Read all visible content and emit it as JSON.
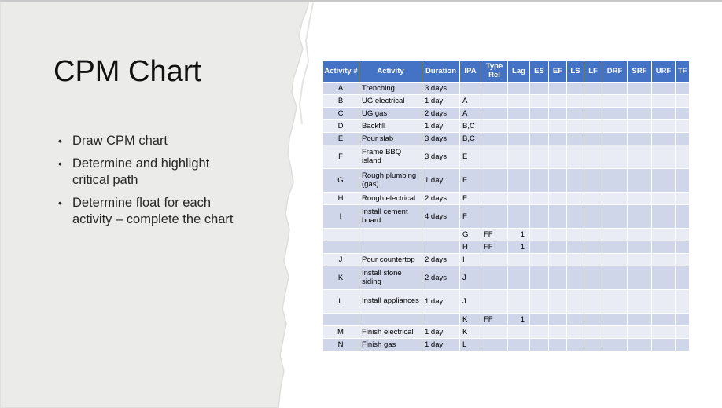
{
  "slide": {
    "title": "CPM Chart",
    "bullets": [
      "Draw CPM chart",
      "Determine and highlight critical path",
      "Determine float for each activity – complete the chart"
    ]
  },
  "table": {
    "columns": [
      "Activity #",
      "Activity",
      "Duration",
      "IPA",
      "Type\nRel",
      "Lag",
      "ES",
      "EF",
      "LS",
      "LF",
      "DRF",
      "SRF",
      "URF",
      "TF"
    ],
    "rows": [
      [
        "A",
        "Trenching",
        "3 days",
        "",
        "",
        "",
        "",
        "",
        "",
        "",
        "",
        "",
        "",
        ""
      ],
      [
        "B",
        "UG electrical",
        "1 day",
        "A",
        "",
        "",
        "",
        "",
        "",
        "",
        "",
        "",
        "",
        ""
      ],
      [
        "C",
        "UG gas",
        "2 days",
        "A",
        "",
        "",
        "",
        "",
        "",
        "",
        "",
        "",
        "",
        ""
      ],
      [
        "D",
        "Backfill",
        "1 day",
        "B,C",
        "",
        "",
        "",
        "",
        "",
        "",
        "",
        "",
        "",
        ""
      ],
      [
        "E",
        "Pour slab",
        "3 days",
        "B,C",
        "",
        "",
        "",
        "",
        "",
        "",
        "",
        "",
        "",
        ""
      ],
      [
        "F",
        "Frame BBQ island",
        "3 days",
        "E",
        "",
        "",
        "",
        "",
        "",
        "",
        "",
        "",
        "",
        ""
      ],
      [
        "G",
        "Rough plumbing (gas)",
        "1 day",
        "F",
        "",
        "",
        "",
        "",
        "",
        "",
        "",
        "",
        "",
        ""
      ],
      [
        "H",
        "Rough electrical",
        "2 days",
        "F",
        "",
        "",
        "",
        "",
        "",
        "",
        "",
        "",
        "",
        ""
      ],
      [
        "I",
        "Install cement board",
        "4 days",
        "F",
        "",
        "",
        "",
        "",
        "",
        "",
        "",
        "",
        "",
        ""
      ],
      [
        "",
        "",
        "",
        "G",
        "FF",
        "1",
        "",
        "",
        "",
        "",
        "",
        "",
        "",
        ""
      ],
      [
        "",
        "",
        "",
        "H",
        "FF",
        "1",
        "",
        "",
        "",
        "",
        "",
        "",
        "",
        ""
      ],
      [
        "J",
        "Pour countertop",
        "2 days",
        "I",
        "",
        "",
        "",
        "",
        "",
        "",
        "",
        "",
        "",
        ""
      ],
      [
        "K",
        "Install stone siding",
        "2 days",
        "J",
        "",
        "",
        "",
        "",
        "",
        "",
        "",
        "",
        "",
        ""
      ],
      [
        "L",
        "Install appliances",
        "1 day",
        "J",
        "",
        "",
        "",
        "",
        "",
        "",
        "",
        "",
        "",
        ""
      ],
      [
        "",
        "",
        "",
        "K",
        "FF",
        "1",
        "",
        "",
        "",
        "",
        "",
        "",
        "",
        ""
      ],
      [
        "M",
        "Finish electrical",
        "1 day",
        "K",
        "",
        "",
        "",
        "",
        "",
        "",
        "",
        "",
        "",
        ""
      ],
      [
        "N",
        "Finish gas",
        "1 day",
        "L",
        "",
        "",
        "",
        "",
        "",
        "",
        "",
        "",
        "",
        ""
      ]
    ]
  },
  "colors": {
    "header_bg": "#4472c4",
    "band_dark": "#cfd6ea",
    "band_light": "#e9ebf5",
    "paper_gray": "#ebebea",
    "top_line": "#c8c8c8",
    "header_text": "#ffffff",
    "body_text": "#000000"
  }
}
